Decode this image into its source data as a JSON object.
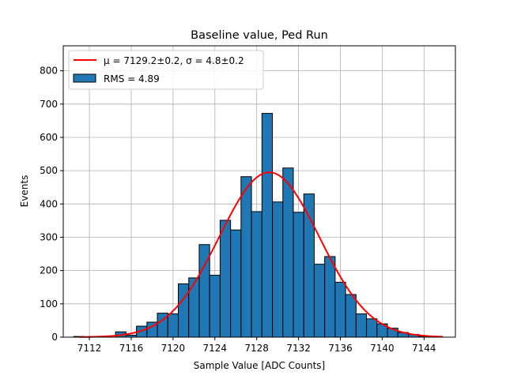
{
  "chart_data": {
    "type": "bar",
    "title": "Baseline value, Ped Run",
    "xlabel": "Sample Value [ADC Counts]",
    "ylabel": "Events",
    "xlim": [
      7109.5,
      7147.0
    ],
    "ylim": [
      0,
      875
    ],
    "x_ticks": [
      7112,
      7116,
      7120,
      7124,
      7128,
      7132,
      7136,
      7140,
      7144
    ],
    "y_ticks": [
      0,
      100,
      200,
      300,
      400,
      500,
      600,
      700,
      800
    ],
    "grid": true,
    "legend_position": "top-left",
    "bin_width": 1,
    "bins": [
      {
        "x": 7111,
        "y": 2
      },
      {
        "x": 7112,
        "y": 0
      },
      {
        "x": 7113,
        "y": 0
      },
      {
        "x": 7114,
        "y": 0
      },
      {
        "x": 7115,
        "y": 16
      },
      {
        "x": 7116,
        "y": 6
      },
      {
        "x": 7117,
        "y": 33
      },
      {
        "x": 7118,
        "y": 45
      },
      {
        "x": 7119,
        "y": 72
      },
      {
        "x": 7120,
        "y": 70
      },
      {
        "x": 7121,
        "y": 160
      },
      {
        "x": 7122,
        "y": 178
      },
      {
        "x": 7123,
        "y": 278
      },
      {
        "x": 7124,
        "y": 186
      },
      {
        "x": 7125,
        "y": 351
      },
      {
        "x": 7126,
        "y": 322
      },
      {
        "x": 7127,
        "y": 482
      },
      {
        "x": 7128,
        "y": 377
      },
      {
        "x": 7129,
        "y": 672
      },
      {
        "x": 7130,
        "y": 406
      },
      {
        "x": 7131,
        "y": 508
      },
      {
        "x": 7132,
        "y": 375
      },
      {
        "x": 7133,
        "y": 430
      },
      {
        "x": 7134,
        "y": 219
      },
      {
        "x": 7135,
        "y": 242
      },
      {
        "x": 7136,
        "y": 165
      },
      {
        "x": 7137,
        "y": 128
      },
      {
        "x": 7138,
        "y": 70
      },
      {
        "x": 7139,
        "y": 55
      },
      {
        "x": 7140,
        "y": 40
      },
      {
        "x": 7141,
        "y": 27
      },
      {
        "x": 7142,
        "y": 14
      },
      {
        "x": 7143,
        "y": 8
      },
      {
        "x": 7144,
        "y": 3
      },
      {
        "x": 7145,
        "y": 1
      }
    ],
    "fit": {
      "amplitude": 495,
      "mean": 7129.2,
      "sigma": 4.8,
      "x_range": [
        7111,
        7145.8
      ]
    },
    "legend": [
      {
        "label": "μ = 7129.2±0.2, σ = 4.8±0.2",
        "kind": "line",
        "color": "#ff0000"
      },
      {
        "label": "RMS = 4.89",
        "kind": "patch",
        "color": "#1f77b4"
      }
    ],
    "colors": {
      "bar": "#1f77b4",
      "bar_edge": "#000000",
      "fit": "#ff0000",
      "grid": "#b0b0b0"
    }
  }
}
